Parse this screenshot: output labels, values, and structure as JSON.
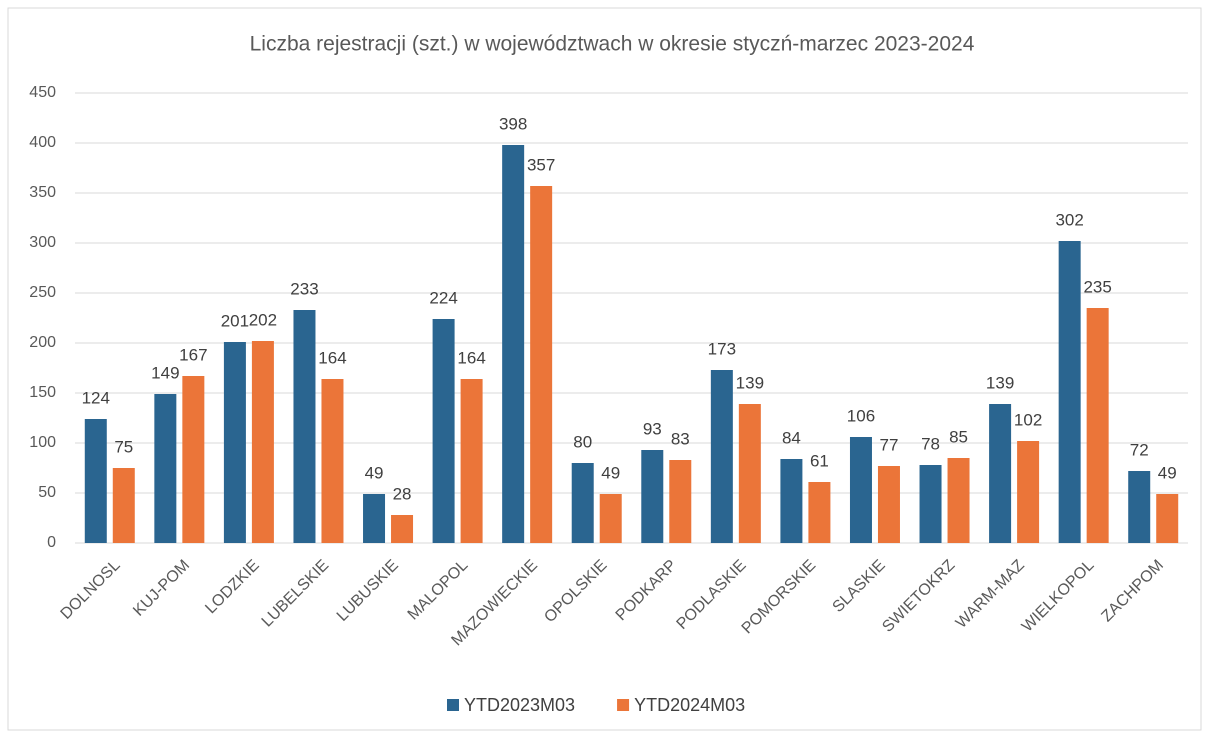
{
  "chart_data": {
    "type": "bar",
    "title": "Liczba rejestracji (szt.) w województwach w okresie styczń-marzec 2023-2024",
    "categories": [
      "DOLNOSL",
      "KUJ-POM",
      "LODZKIE",
      "LUBELSKIE",
      "LUBUSKIE",
      "MALOPOL",
      "MAZOWIECKIE",
      "OPOLSKIE",
      "PODKARP",
      "PODLASKIE",
      "POMORSKIE",
      "SLASKIE",
      "SWIETOKRZ",
      "WARM-MAZ",
      "WIELKOPOL",
      "ZACHPOM"
    ],
    "series": [
      {
        "name": "YTD2023M03",
        "color": "#2a6590",
        "values": [
          124,
          149,
          201,
          233,
          49,
          224,
          398,
          80,
          93,
          173,
          84,
          106,
          78,
          139,
          302,
          72
        ]
      },
      {
        "name": "YTD2024M03",
        "color": "#eb7539",
        "values": [
          75,
          167,
          202,
          164,
          28,
          164,
          357,
          49,
          83,
          139,
          61,
          77,
          85,
          102,
          235,
          49
        ]
      }
    ],
    "ylim": [
      0,
      450
    ],
    "yticks": [
      0,
      50,
      100,
      150,
      200,
      250,
      300,
      350,
      400,
      450
    ],
    "grid": true,
    "legend": "bottom"
  }
}
